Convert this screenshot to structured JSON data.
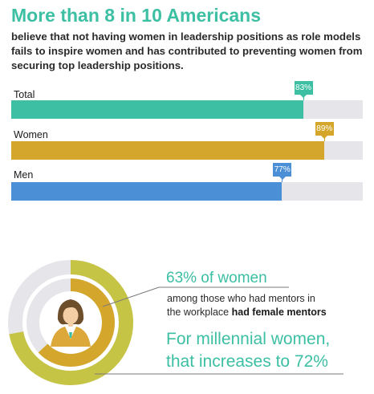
{
  "headline": "More than 8 in 10 Americans",
  "subheadline": "believe that not having women in leadership positions as role models fails to inspire women and has contributed to preventing women from securing top leadership positions.",
  "colors": {
    "teal": "#3cbfa3",
    "gold": "#d4a72c",
    "blue": "#4b8fd6",
    "olive": "#c6c444",
    "track": "#e6e6ea"
  },
  "chart_data": [
    {
      "type": "bar",
      "orientation": "horizontal",
      "categories": [
        "Total",
        "Women",
        "Men"
      ],
      "values": [
        83,
        89,
        77
      ],
      "value_labels": [
        "83%",
        "89%",
        "77%"
      ],
      "unit": "%",
      "xlim": [
        0,
        100
      ],
      "colors": [
        "#3cbfa3",
        "#d4a72c",
        "#4b8fd6"
      ]
    },
    {
      "type": "pie",
      "style": "donut",
      "rings": [
        {
          "value": 72,
          "color": "#c6c444"
        },
        {
          "value": 63,
          "color": "#d4a72c"
        }
      ]
    }
  ],
  "callouts": {
    "stat1": "63% of women",
    "line1": "among those who had mentors in",
    "line2_prefix": "the workplace ",
    "line2_bold": "had female mentors",
    "stat2_line1": "For millennial women,",
    "stat2_line2": "that increases to 72%"
  },
  "icons": {
    "person": "woman-avatar-icon"
  }
}
